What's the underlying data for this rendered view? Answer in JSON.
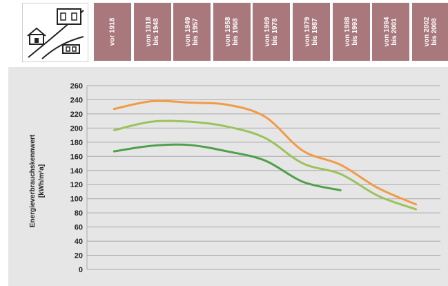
{
  "header": {
    "periods": [
      "vor 1918",
      "von 1918\nbis 1948",
      "von 1949\nbis 1957",
      "von 1958\nbis 1968",
      "von 1969\nbis 1978",
      "von 1979\nbis 1987",
      "von 1988\nbis 1993",
      "von 1994\nbis 2001",
      "von 2002\nbis 2008"
    ],
    "cell_color": "#a8787d"
  },
  "icon": {
    "name": "building-types-icon"
  },
  "chart_data": {
    "type": "line",
    "ylabel": "Energieverbrauchskennwert\n[kWh/m²a]",
    "ylim": [
      0,
      260
    ],
    "yticks": [
      0,
      20,
      40,
      60,
      80,
      100,
      120,
      140,
      160,
      180,
      200,
      220,
      240,
      260
    ],
    "categories": [
      "vor 1918",
      "von 1918 bis 1948",
      "von 1949 bis 1957",
      "von 1958 bis 1968",
      "von 1969 bis 1978",
      "von 1979 bis 1987",
      "von 1988 bis 1993",
      "von 1994 bis 2001",
      "von 2002 bis 2008"
    ],
    "grid": true,
    "series": [
      {
        "color": "#f29a45",
        "values": [
          227,
          238,
          236,
          233,
          216,
          168,
          148,
          115,
          92
        ]
      },
      {
        "color": "#9cc25c",
        "values": [
          197,
          209,
          209,
          202,
          186,
          150,
          135,
          104,
          85
        ]
      },
      {
        "color": "#4fa04a",
        "values": [
          167,
          175,
          176,
          167,
          154,
          124,
          112,
          null,
          null
        ]
      }
    ]
  }
}
